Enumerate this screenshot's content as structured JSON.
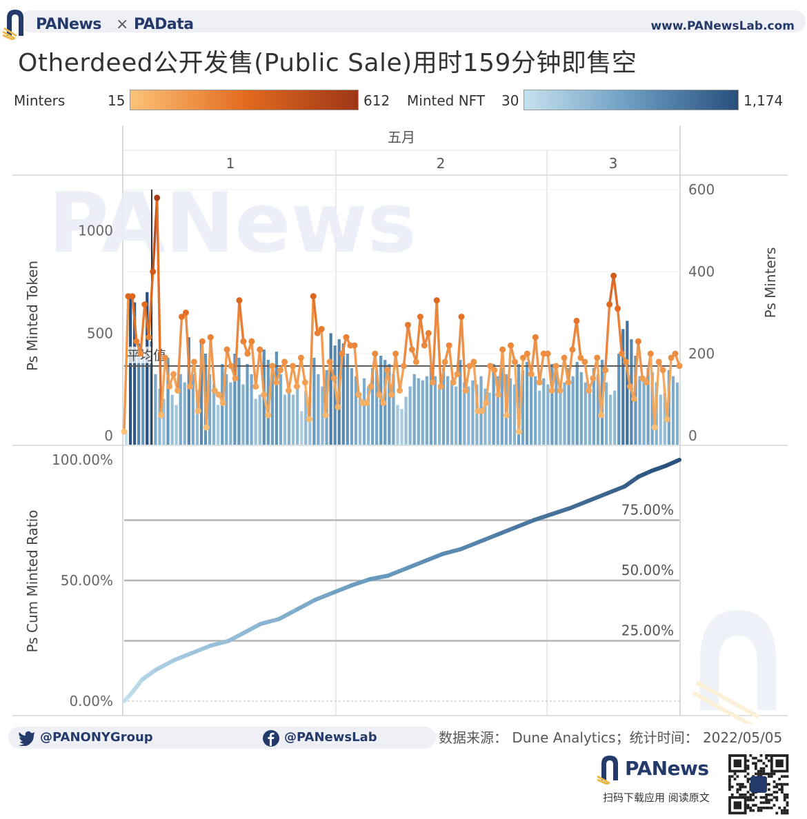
{
  "header": {
    "brand_left": "PANews",
    "brand_sep": "×",
    "brand_right": "PAData",
    "site": "www.PANewsLab.com"
  },
  "title": "Otherdeed公开发售(Public Sale)用时159分钟即售空",
  "legend": {
    "minters_label": "Minters",
    "minters_min": "15",
    "minters_max": "612",
    "minters_colors": [
      "#fbc277",
      "#e36b1f",
      "#9e3617"
    ],
    "nft_label": "Minted NFT",
    "nft_min": "30",
    "nft_max": "1,174",
    "nft_colors": [
      "#c5e1ef",
      "#6a9cc0",
      "#294f7c"
    ]
  },
  "watermark": "PANews",
  "chart_data": [
    {
      "type": "bar+line",
      "column_header": "五月",
      "columns": [
        "1",
        "2",
        "3"
      ],
      "ylabel_left": "Ps Minted Token",
      "ylabel_right": "Ps Minters",
      "left_ticks": [
        "0",
        "500",
        "1000"
      ],
      "right_ticks": [
        "0",
        "200",
        "400",
        "600"
      ],
      "ylim_left": [
        0,
        1200
      ],
      "ylim_right": [
        0,
        600
      ],
      "reference_line": {
        "label": "平均值",
        "value": 340
      },
      "series": [
        {
          "name": "Minted Token",
          "axis": "left",
          "values": [
            20,
            680,
            650,
            450,
            380,
            700,
            460,
            300,
            230,
            180,
            380,
            200,
            150,
            300,
            260,
            480,
            300,
            220,
            450,
            400,
            300,
            250,
            150,
            350,
            300,
            260,
            400,
            380,
            250,
            350,
            300,
            180,
            200,
            420,
            370,
            350,
            410,
            300,
            200,
            260,
            200,
            230,
            120,
            220,
            190,
            380,
            300,
            240,
            320,
            500,
            440,
            470,
            450,
            400,
            330,
            290,
            210,
            280,
            240,
            330,
            320,
            390,
            370,
            350,
            300,
            150,
            130,
            190,
            240,
            300,
            280,
            270,
            290,
            340,
            290,
            230,
            330,
            290,
            270,
            240,
            370,
            260,
            240,
            270,
            250,
            290,
            230,
            210,
            350,
            290,
            330,
            300,
            280,
            250,
            350,
            320,
            360,
            330,
            290,
            220,
            280,
            250,
            350,
            320,
            240,
            260,
            330,
            290,
            360,
            310,
            260,
            250,
            330,
            300,
            370,
            260,
            200,
            220,
            400,
            520,
            560,
            470,
            390,
            290,
            280,
            330,
            310,
            260,
            200,
            210,
            320,
            290,
            260
          ]
        },
        {
          "name": "Minters",
          "axis": "right",
          "values": [
            10,
            340,
            340,
            230,
            200,
            320,
            240,
            400,
            580,
            50,
            190,
            120,
            150,
            110,
            290,
            300,
            120,
            180,
            60,
            230,
            20,
            240,
            110,
            100,
            80,
            210,
            170,
            140,
            330,
            230,
            200,
            230,
            120,
            210,
            100,
            50,
            170,
            130,
            160,
            180,
            110,
            170,
            120,
            190,
            130,
            40,
            340,
            250,
            260,
            50,
            180,
            140,
            70,
            200,
            240,
            220,
            220,
            100,
            80,
            80,
            120,
            200,
            100,
            80,
            160,
            100,
            200,
            110,
            170,
            270,
            210,
            180,
            290,
            220,
            250,
            130,
            330,
            120,
            180,
            220,
            130,
            150,
            290,
            110,
            170,
            180,
            60,
            60,
            80,
            170,
            160,
            100,
            210,
            50,
            220,
            180,
            10,
            190,
            200,
            150,
            240,
            130,
            200,
            200,
            110,
            170,
            110,
            190,
            130,
            210,
            280,
            190,
            180,
            110,
            140,
            190,
            50,
            160,
            320,
            390,
            310,
            200,
            180,
            120,
            90,
            230,
            140,
            130,
            200,
            20,
            180,
            160,
            40,
            190,
            200,
            170
          ]
        }
      ]
    },
    {
      "type": "line",
      "ylabel": "Ps Cum Minted Ratio",
      "left_ticks": [
        "0.00%",
        "50.00%",
        "100.00%"
      ],
      "reference_lines": [
        {
          "label": "25.00%",
          "value": 25
        },
        {
          "label": "50.00%",
          "value": 50
        },
        {
          "label": "75.00%",
          "value": 75
        }
      ],
      "ylim": [
        0,
        100
      ],
      "series": [
        {
          "name": "Cum Minted Ratio",
          "points": [
            [
              0,
              0
            ],
            [
              3,
              3
            ],
            [
              8,
              9
            ],
            [
              14,
              13
            ],
            [
              22,
              17
            ],
            [
              30,
              20
            ],
            [
              38,
              23
            ],
            [
              46,
              25
            ],
            [
              52,
              28
            ],
            [
              60,
              32
            ],
            [
              68,
              34
            ],
            [
              76,
              38
            ],
            [
              84,
              42
            ],
            [
              92,
              45
            ],
            [
              100,
              48
            ],
            [
              108,
              50.5
            ],
            [
              116,
              52
            ],
            [
              124,
              55
            ],
            [
              132,
              58
            ],
            [
              140,
              61
            ],
            [
              148,
              63
            ],
            [
              156,
              66
            ],
            [
              164,
              69
            ],
            [
              172,
              72
            ],
            [
              180,
              75
            ],
            [
              188,
              77.5
            ],
            [
              196,
              80
            ],
            [
              204,
              83
            ],
            [
              212,
              86
            ],
            [
              220,
              89
            ],
            [
              226,
              93
            ],
            [
              232,
              95.5
            ],
            [
              238,
              97.5
            ],
            [
              244,
              100
            ]
          ]
        }
      ]
    }
  ],
  "footer": {
    "twitter": "@PANONYGroup",
    "facebook": "@PANewsLab",
    "source": "数据来源：  Dune Analytics；统计时间：  2022/05/05",
    "brand": "PANews",
    "scan": "扫码下载应用  阅读原文"
  }
}
